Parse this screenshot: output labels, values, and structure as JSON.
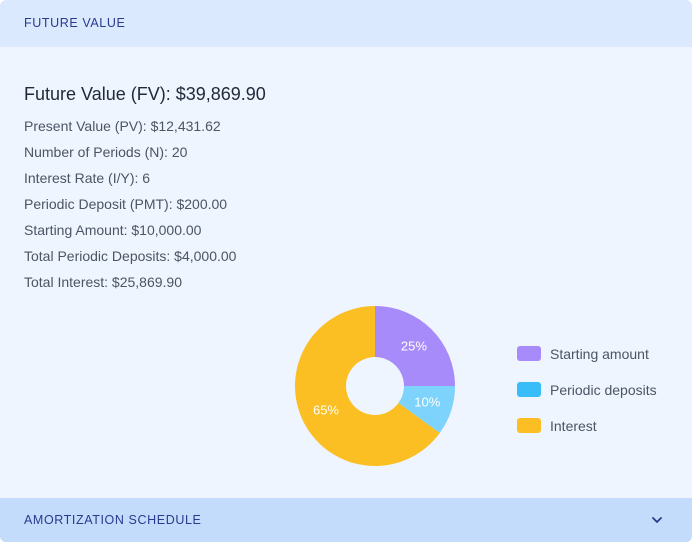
{
  "header": {
    "title": "FUTURE VALUE"
  },
  "summary": {
    "fv_title": "Future Value (FV): $39,869.90",
    "details": [
      "Present Value (PV): $12,431.62",
      "Number of Periods (N): 20",
      "Interest Rate (I/Y): 6",
      "Periodic Deposit (PMT): $200.00",
      "Starting Amount: $10,000.00",
      "Total Periodic Deposits: $4,000.00",
      "Total Interest: $25,869.90"
    ]
  },
  "chart_data": {
    "type": "pie",
    "slices": [
      {
        "name": "Starting amount",
        "value": 25,
        "label": "25%",
        "color": "#a78bfa"
      },
      {
        "name": "Periodic deposits",
        "value": 10,
        "label": "10%",
        "color": "#7dd3fc"
      },
      {
        "name": "Interest",
        "value": 65,
        "label": "65%",
        "color": "#fbbf24"
      }
    ],
    "legend_position": "right"
  },
  "legend": [
    {
      "label": "Starting amount",
      "color": "#a78bfa"
    },
    {
      "label": "Periodic deposits",
      "color": "#38bdf8"
    },
    {
      "label": "Interest",
      "color": "#fbbf24"
    }
  ],
  "footer": {
    "title": "AMORTIZATION SCHEDULE",
    "toggle_icon": "chevron-down-icon"
  }
}
